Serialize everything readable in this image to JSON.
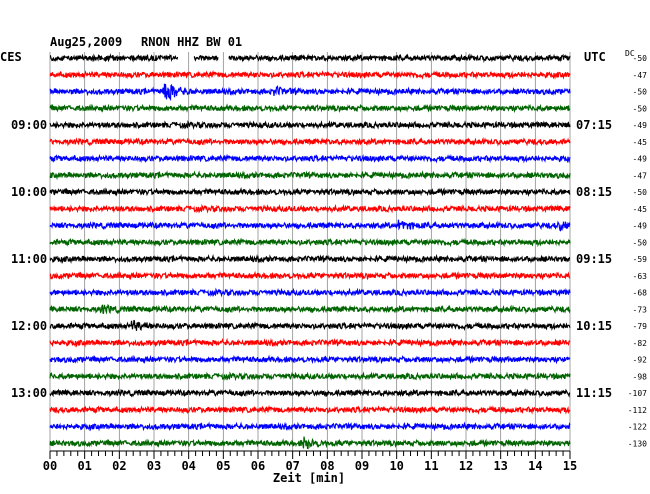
{
  "header": {
    "date": "Aug25,2009",
    "station": "RNON HHZ BW 01",
    "left_zone": "CES",
    "right_zone": "UTC",
    "dc_label": "DC"
  },
  "chart_data": {
    "type": "helicorder",
    "minutes_per_line": 15,
    "xlabel": "Zeit [min]",
    "xlim": [
      0,
      15
    ],
    "x_ticks": [
      "00",
      "01",
      "02",
      "03",
      "04",
      "05",
      "06",
      "07",
      "08",
      "09",
      "10",
      "11",
      "12",
      "13",
      "14",
      "15"
    ],
    "line_colors": [
      "#000000",
      "#ff0000",
      "#0000ff",
      "#006400"
    ],
    "left_hour_labels": [
      {
        "line": 4,
        "text": "09:00"
      },
      {
        "line": 8,
        "text": "10:00"
      },
      {
        "line": 12,
        "text": "11:00"
      },
      {
        "line": 16,
        "text": "12:00"
      },
      {
        "line": 20,
        "text": "13:00"
      }
    ],
    "right_time_labels": [
      {
        "line": 4,
        "text": "07:15"
      },
      {
        "line": 8,
        "text": "08:15"
      },
      {
        "line": 12,
        "text": "09:15"
      },
      {
        "line": 16,
        "text": "10:15"
      },
      {
        "line": 20,
        "text": "11:15"
      }
    ],
    "dc_offsets": [
      -50,
      -47,
      -50,
      -50,
      -49,
      -45,
      -49,
      -47,
      -50,
      -45,
      -49,
      -50,
      -59,
      -63,
      -68,
      -73,
      -79,
      -82,
      -92,
      -98,
      -107,
      -112,
      -122,
      -130
    ],
    "gaps": [
      {
        "line": 0,
        "from_min": 3.7,
        "to_min": 4.15
      },
      {
        "line": 0,
        "from_min": 4.85,
        "to_min": 5.15
      }
    ],
    "events": [
      {
        "line": 2,
        "at_min": 3.3,
        "strength": 2.2
      },
      {
        "line": 2,
        "at_min": 6.5,
        "strength": 0.6
      },
      {
        "line": 10,
        "at_min": 10.1,
        "strength": 0.8
      },
      {
        "line": 10,
        "at_min": 14.7,
        "strength": 0.6
      },
      {
        "line": 15,
        "at_min": 1.5,
        "strength": 0.6
      },
      {
        "line": 16,
        "at_min": 2.4,
        "strength": 0.8
      },
      {
        "line": 23,
        "at_min": 7.3,
        "strength": 1.0
      }
    ]
  }
}
